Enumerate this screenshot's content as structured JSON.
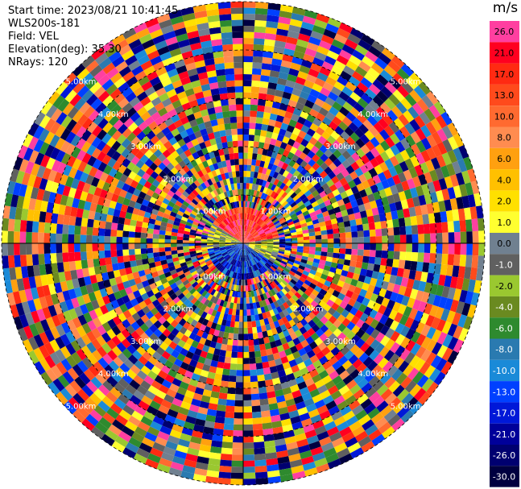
{
  "header": {
    "start_time": "Start time: 2023/08/21 10:41:45",
    "instrument": "WLS200s-181",
    "field": "Field: VEL",
    "elevation": "Elevation(deg): 35.30",
    "nrays": "NRays: 120"
  },
  "ppi": {
    "range_labels": [
      "1.00km",
      "2.00km",
      "3.00km",
      "4.00km",
      "5.00km"
    ],
    "nrays": 120,
    "center_field": "wind pattern: red/orange toward north-east half, blue toward south"
  },
  "colorbar": {
    "unit": "m/s",
    "bins": [
      {
        "label": "26.0",
        "color": "#ff3fa0"
      },
      {
        "label": "21.0",
        "color": "#ff0020"
      },
      {
        "label": "17.0",
        "color": "#ff2a12"
      },
      {
        "label": "13.0",
        "color": "#ff4a1c"
      },
      {
        "label": "10.0",
        "color": "#ff6a30"
      },
      {
        "label": "8.0",
        "color": "#ff8c50"
      },
      {
        "label": "6.0",
        "color": "#ffa010"
      },
      {
        "label": "4.0",
        "color": "#ffc000"
      },
      {
        "label": "2.0",
        "color": "#ffe000"
      },
      {
        "label": "1.0",
        "color": "#ffff30"
      },
      {
        "label": "0.0",
        "color": "#708090"
      },
      {
        "label": "-1.0",
        "color": "#606060"
      },
      {
        "label": "-2.0",
        "color": "#9ac830"
      },
      {
        "label": "-4.0",
        "color": "#6a8a20"
      },
      {
        "label": "-6.0",
        "color": "#2e8a2e"
      },
      {
        "label": "-8.0",
        "color": "#2a7ab0"
      },
      {
        "label": "-10.0",
        "color": "#1a8ad8"
      },
      {
        "label": "-13.0",
        "color": "#0040ff"
      },
      {
        "label": "-17.0",
        "color": "#0018d8"
      },
      {
        "label": "-21.0",
        "color": "#00009a"
      },
      {
        "label": "-26.0",
        "color": "#000070"
      },
      {
        "label": "-30.0",
        "color": "#000040"
      }
    ]
  }
}
